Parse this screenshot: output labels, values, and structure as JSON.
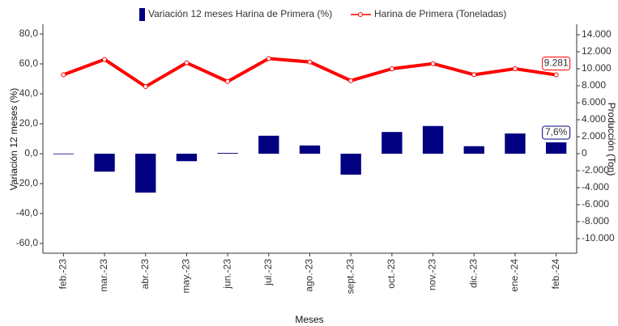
{
  "chart_data": {
    "type": "bar_line",
    "categories": [
      "feb.-23",
      "mar.-23",
      "abr.-23",
      "may.-23",
      "jun.-23",
      "jul.-23",
      "ago.-23",
      "sept.-23",
      "oct.-23",
      "nov.-23",
      "dic.-23",
      "ene.-24",
      "feb.-24"
    ],
    "series": [
      {
        "name": "Variación 12 meses Harina de Primera (%)",
        "color": "#000080",
        "type": "bar",
        "axis": "y",
        "values": [
          0.1,
          -12,
          -26,
          -5,
          0.5,
          12,
          5.5,
          -14,
          14.5,
          18.5,
          5,
          13.5,
          7.6
        ],
        "value_labels": [
          null,
          null,
          null,
          null,
          null,
          null,
          null,
          null,
          null,
          null,
          null,
          null,
          "7,6%"
        ]
      },
      {
        "name": "Harina de Primera (Toneladas)",
        "color": "#ff0000",
        "type": "line",
        "axis": "y2",
        "values": [
          9300,
          11100,
          7900,
          10700,
          8500,
          11200,
          10800,
          8600,
          10000,
          10600,
          9300,
          10000,
          9281
        ],
        "value_labels": [
          null,
          null,
          null,
          null,
          null,
          null,
          null,
          null,
          null,
          null,
          null,
          null,
          "9.281"
        ]
      }
    ],
    "xlabel": "Meses",
    "ylabel": "Variación 12 meses (%)",
    "y2label": "Producción (Ton)",
    "ylim": [
      -66.5,
      86.5
    ],
    "yticks": [
      {
        "value": -60,
        "label": "-60,0"
      },
      {
        "value": -40,
        "label": "-40,0"
      },
      {
        "value": -20,
        "label": "-20,0"
      },
      {
        "value": 0,
        "label": "0,0"
      },
      {
        "value": 20,
        "label": "20,0"
      },
      {
        "value": 40,
        "label": "40,0"
      },
      {
        "value": 60,
        "label": "60,0"
      },
      {
        "value": 80,
        "label": "80,0"
      }
    ],
    "y2lim": [
      -11714,
      15238
    ],
    "y2ticks": [
      {
        "value": -10000,
        "label": "-10.000"
      },
      {
        "value": -8000,
        "label": "-8.000"
      },
      {
        "value": -6000,
        "label": "-6.000"
      },
      {
        "value": -4000,
        "label": "-4.000"
      },
      {
        "value": -2000,
        "label": "-2.000"
      },
      0,
      {
        "value": 2000,
        "label": "2.000"
      },
      {
        "value": 4000,
        "label": "4.000"
      },
      {
        "value": 6000,
        "label": "6.000"
      },
      {
        "value": 8000,
        "label": "8.000"
      },
      {
        "value": 10000,
        "label": "10.000"
      },
      {
        "value": 12000,
        "label": "12.000"
      },
      {
        "value": 14000,
        "label": "14.000"
      }
    ]
  }
}
